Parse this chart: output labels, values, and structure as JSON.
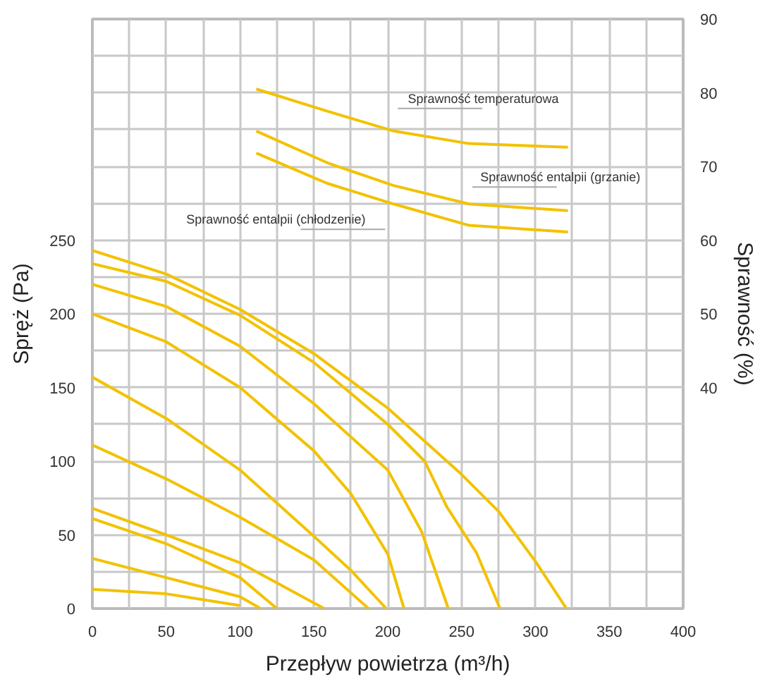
{
  "chart_data": {
    "type": "line",
    "xlabel": "Przepływ powietrza (m³/h)",
    "ylabel": "Spręż (Pa)",
    "y2label": "Sprawność (%)",
    "xlim": [
      0,
      400
    ],
    "xticks": [
      0,
      {
        "value": 25,
        "label": null
      },
      50,
      {
        "value": 75,
        "label": null
      },
      100,
      {
        "value": 125,
        "label": null
      },
      150,
      {
        "value": 175,
        "label": null
      },
      200,
      {
        "value": 225,
        "label": null
      },
      250,
      {
        "value": 275,
        "label": null
      },
      300,
      {
        "value": 325,
        "label": null
      },
      350,
      {
        "value": 375,
        "label": null
      },
      400
    ],
    "ylim": [
      0,
      400
    ],
    "yticks": [
      0,
      {
        "value": 25,
        "label": null
      },
      50,
      {
        "value": 75,
        "label": null
      },
      100,
      {
        "value": 125,
        "label": null
      },
      150,
      {
        "value": 175,
        "label": null
      },
      200,
      {
        "value": 225,
        "label": null
      },
      250,
      {
        "value": 275,
        "label": null
      },
      {
        "value": 300,
        "label": null
      },
      {
        "value": 325,
        "label": null
      },
      {
        "value": 350,
        "label": null
      },
      {
        "value": 375,
        "label": null
      },
      {
        "value": 400,
        "label": null
      }
    ],
    "y2lim": [
      10,
      90
    ],
    "y2ticks": [
      40,
      50,
      60,
      70,
      80,
      90
    ],
    "grid": true,
    "line_style": "solid",
    "series": [
      {
        "color": "#f2c200",
        "x": [
          0,
          50,
          100,
          150,
          200,
          250,
          275,
          300,
          321
        ],
        "values": [
          243,
          227,
          203,
          173,
          136,
          91,
          66,
          32,
          0
        ]
      },
      {
        "color": "#f2c200",
        "x": [
          0,
          50,
          100,
          150,
          200,
          225,
          240,
          260,
          276
        ],
        "values": [
          234,
          222,
          199,
          167,
          125,
          100,
          69,
          38,
          0
        ]
      },
      {
        "color": "#f2c200",
        "x": [
          0,
          50,
          100,
          150,
          200,
          223,
          241
        ],
        "values": [
          220,
          205,
          178,
          139,
          94,
          52,
          0
        ]
      },
      {
        "color": "#f2c200",
        "x": [
          0,
          50,
          100,
          150,
          175,
          200,
          211
        ],
        "values": [
          200,
          181,
          150,
          107,
          78,
          37,
          0
        ]
      },
      {
        "color": "#f2c200",
        "x": [
          0,
          50,
          100,
          150,
          175,
          199
        ],
        "values": [
          157,
          129,
          94,
          49,
          26,
          0
        ]
      },
      {
        "color": "#f2c200",
        "x": [
          0,
          50,
          100,
          150,
          187
        ],
        "values": [
          111,
          88,
          62,
          33,
          0
        ]
      },
      {
        "color": "#f2c200",
        "x": [
          0,
          50,
          100,
          157
        ],
        "values": [
          68,
          50,
          31,
          0
        ]
      },
      {
        "color": "#f2c200",
        "x": [
          0,
          50,
          100,
          125
        ],
        "values": [
          61,
          44,
          21,
          0
        ]
      },
      {
        "color": "#f2c200",
        "x": [
          0,
          50,
          100,
          114
        ],
        "values": [
          34,
          21,
          8,
          0
        ]
      },
      {
        "color": "#f2c200",
        "x": [
          0,
          50,
          100
        ],
        "values": [
          13,
          10,
          2
        ]
      },
      {
        "name": "Sprawność temperaturowa",
        "axis": "y2",
        "color": "#f2c200",
        "x": [
          111,
          159,
          204,
          255,
          322
        ],
        "values": [
          80.5,
          77.5,
          74.8,
          73.1,
          72.6
        ]
      },
      {
        "name": "Sprawność entalpii (grzanie)",
        "axis": "y2",
        "color": "#f2c200",
        "x": [
          111,
          159,
          204,
          255,
          322
        ],
        "values": [
          74.8,
          70.5,
          67.4,
          64.9,
          64.0
        ]
      },
      {
        "name": "Sprawność entalpii (chłodzenie)",
        "axis": "y2",
        "color": "#f2c200",
        "x": [
          111,
          159,
          204,
          255,
          322
        ],
        "values": [
          71.8,
          67.7,
          64.9,
          62.0,
          61.1
        ]
      }
    ]
  }
}
